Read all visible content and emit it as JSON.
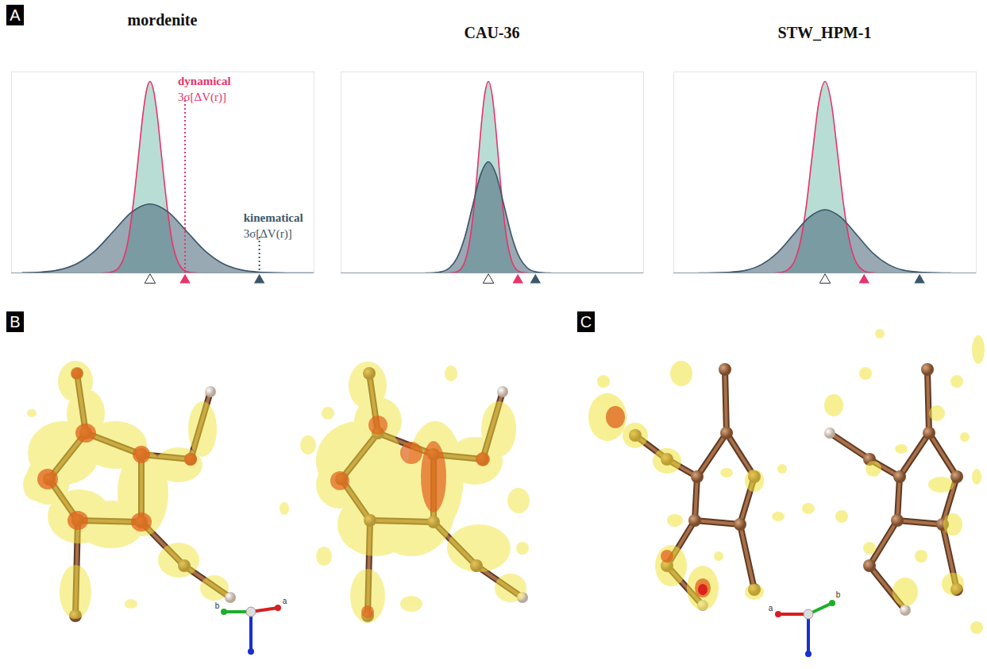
{
  "chart_data": [
    {
      "type": "area",
      "title": "mordenite",
      "xlim": [
        -3.8,
        4.5
      ],
      "ylim": [
        0,
        1.05
      ],
      "xticks": [],
      "yticks": [],
      "tick_labels": false,
      "grid": false,
      "mean": 0,
      "series": [
        {
          "name": "dynamical",
          "color": "#e8336b",
          "threshold": 0.96,
          "x": [
            -1.3,
            -1.2,
            -1.1,
            -1,
            -0.9,
            -0.8,
            -0.7,
            -0.6,
            -0.5,
            -0.4,
            -0.3,
            -0.2,
            -0.1,
            0,
            0.1,
            0.2,
            0.3,
            0.4,
            0.5,
            0.6,
            0.7,
            0.8,
            0.9,
            1,
            1.1,
            1.2,
            1.3
          ],
          "values": [
            0,
            0.001,
            0.003,
            0.008,
            0.019,
            0.044,
            0.09,
            0.17,
            0.3,
            0.46,
            0.64,
            0.82,
            0.95,
            1,
            0.95,
            0.82,
            0.64,
            0.46,
            0.3,
            0.17,
            0.09,
            0.044,
            0.019,
            0.008,
            0.003,
            0.001,
            0
          ]
        },
        {
          "name": "kinematical",
          "color": "#3d566a",
          "threshold": 3.0,
          "x": [
            -3.5,
            -3,
            -2.5,
            -2,
            -1.5,
            -1,
            -0.5,
            0,
            0.5,
            1,
            1.5,
            2,
            2.5,
            3,
            3.5,
            4,
            4.5
          ],
          "values": [
            0.001,
            0.004,
            0.016,
            0.049,
            0.117,
            0.218,
            0.318,
            0.36,
            0.318,
            0.218,
            0.117,
            0.049,
            0.016,
            0.004,
            0.001,
            0,
            0
          ]
        }
      ],
      "annotations": [
        {
          "series": "dynamical",
          "text": [
            "dynamical",
            "3σ[ΔV(r)]"
          ]
        },
        {
          "series": "kinematical",
          "text": [
            "kinematical",
            "3σ[ΔV(r)]"
          ]
        }
      ]
    },
    {
      "type": "area",
      "title": "CAU-36",
      "xlim": [
        -9.4,
        9.9
      ],
      "ylim": [
        0,
        1.05
      ],
      "xticks": [],
      "yticks": [],
      "tick_labels": false,
      "grid": false,
      "mean": 0,
      "series": [
        {
          "name": "dynamical",
          "color": "#e8336b",
          "threshold": 1.88,
          "x": [
            -2.5,
            -2.25,
            -2,
            -1.75,
            -1.5,
            -1.25,
            -1,
            -0.75,
            -0.5,
            -0.25,
            0,
            0.25,
            0.5,
            0.75,
            1,
            1.25,
            1.5,
            1.75,
            2,
            2.25,
            2.5
          ],
          "values": [
            0,
            0.002,
            0.006,
            0.021,
            0.059,
            0.14,
            0.284,
            0.49,
            0.73,
            0.924,
            1,
            0.924,
            0.73,
            0.49,
            0.284,
            0.14,
            0.059,
            0.021,
            0.006,
            0.002,
            0
          ]
        },
        {
          "name": "kinematical",
          "color": "#3d566a",
          "threshold": 3.0,
          "x": [
            -4,
            -3.5,
            -3,
            -2.5,
            -2,
            -1.5,
            -1,
            -0.5,
            0,
            0.5,
            1,
            1.5,
            2,
            2.5,
            3,
            3.5,
            4
          ],
          "values": [
            0,
            0.001,
            0.006,
            0.025,
            0.078,
            0.188,
            0.352,
            0.512,
            0.58,
            0.512,
            0.352,
            0.188,
            0.078,
            0.025,
            0.006,
            0.001,
            0
          ]
        }
      ],
      "annotations": []
    },
    {
      "type": "area",
      "title": "STW_HPM-1",
      "xlim": [
        -4.8,
        4.8
      ],
      "ylim": [
        0,
        1.05
      ],
      "xticks": [],
      "yticks": [],
      "tick_labels": false,
      "grid": false,
      "mean": 0,
      "series": [
        {
          "name": "dynamical",
          "color": "#e8336b",
          "threshold": 1.24,
          "x": [
            -1.6,
            -1.4,
            -1.2,
            -1,
            -0.8,
            -0.6,
            -0.4,
            -0.2,
            0,
            0.2,
            0.4,
            0.6,
            0.8,
            1,
            1.2,
            1.4,
            1.6
          ],
          "values": [
            0,
            0.003,
            0.014,
            0.051,
            0.149,
            0.343,
            0.622,
            0.888,
            1,
            0.888,
            0.622,
            0.343,
            0.149,
            0.051,
            0.014,
            0.003,
            0
          ]
        },
        {
          "name": "kinematical",
          "color": "#3d566a",
          "threshold": 3.0,
          "x": [
            -4,
            -3.5,
            -3,
            -2.5,
            -2,
            -1.5,
            -1,
            -0.5,
            0,
            0.5,
            1,
            1.5,
            2,
            2.5,
            3,
            3.5,
            4
          ],
          "values": [
            0,
            0.001,
            0.004,
            0.014,
            0.045,
            0.107,
            0.2,
            0.291,
            0.33,
            0.291,
            0.2,
            0.107,
            0.045,
            0.014,
            0.004,
            0.001,
            0
          ]
        }
      ],
      "annotations": []
    }
  ],
  "panel_labels": [
    "A",
    "B",
    "C"
  ],
  "axis_triads": [
    [
      "b",
      "a"
    ],
    [
      "a",
      "b"
    ]
  ]
}
